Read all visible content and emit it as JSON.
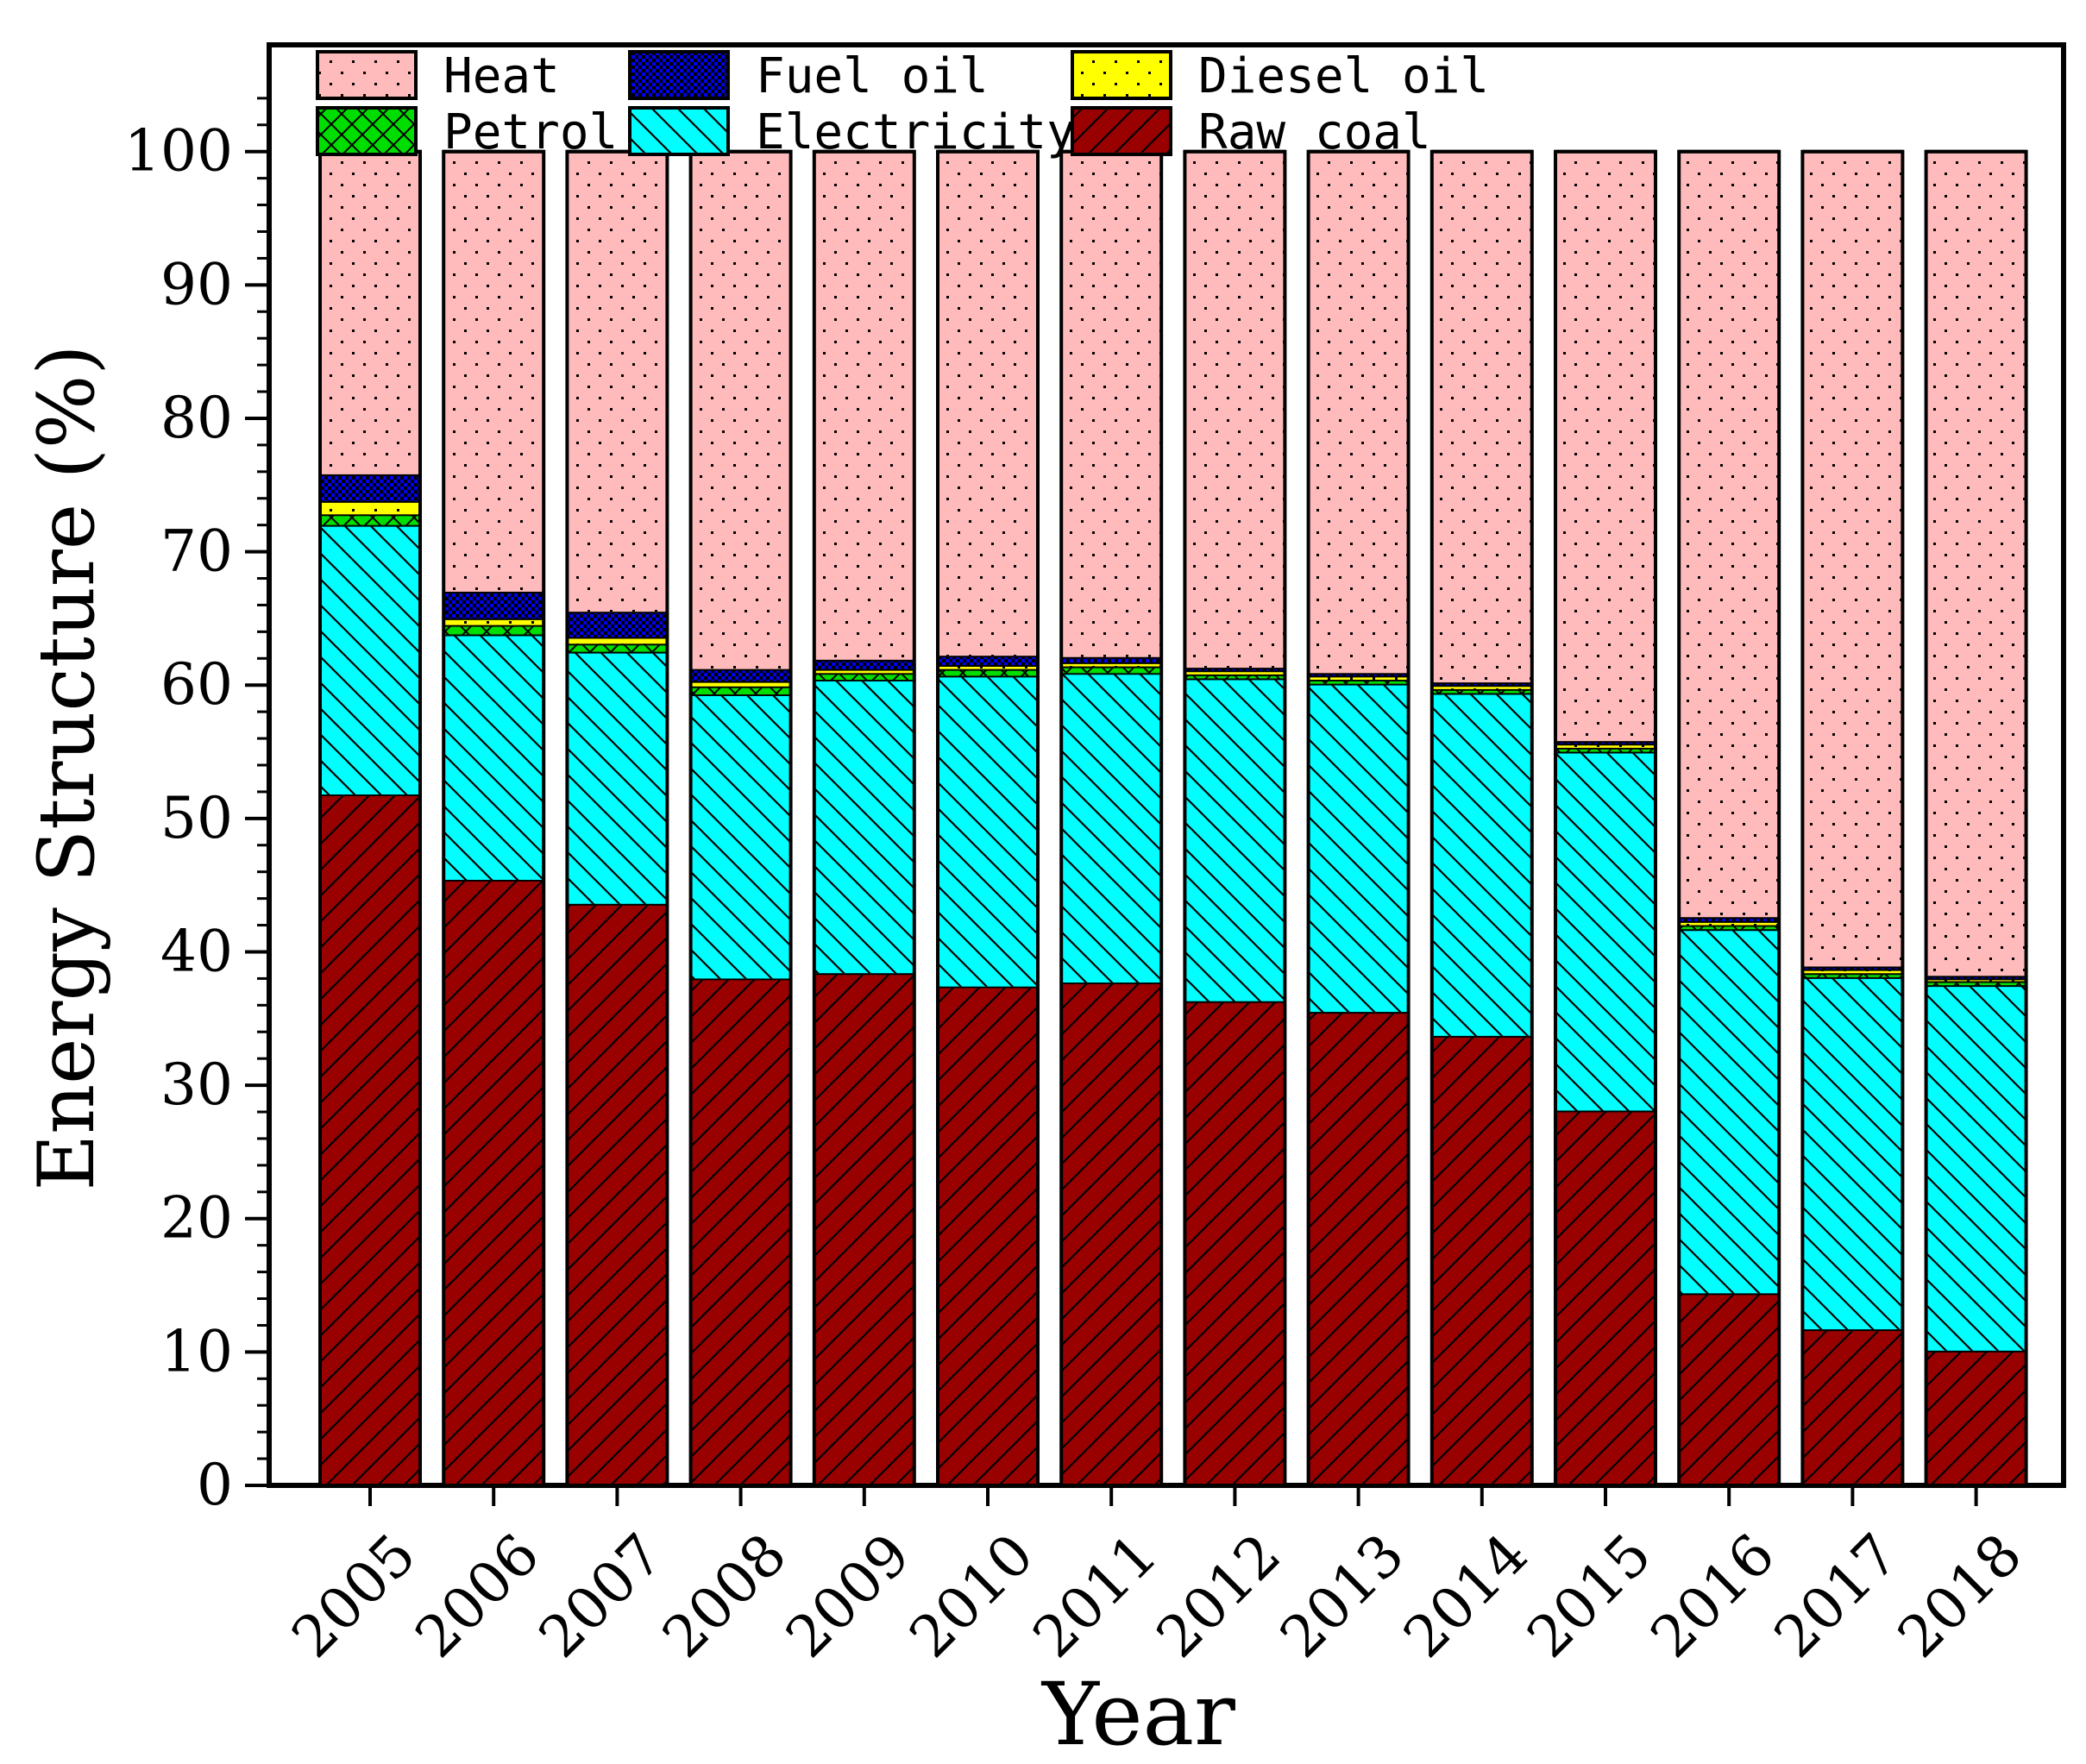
{
  "chart_data": {
    "type": "bar",
    "stacked": true,
    "title": "",
    "xlabel": "Year",
    "ylabel": "Energy Structure (%)",
    "ylim": [
      0,
      108
    ],
    "yticks": [
      0,
      10,
      20,
      30,
      40,
      50,
      60,
      70,
      80,
      90,
      100
    ],
    "grid": false,
    "legend_position": "top",
    "categories": [
      "2005",
      "2006",
      "2007",
      "2008",
      "2009",
      "2010",
      "2011",
      "2012",
      "2013",
      "2014",
      "2015",
      "2016",
      "2017",
      "2018"
    ],
    "series": [
      {
        "name": "Raw coal",
        "color": "#990000",
        "pattern": "diag-up",
        "values": [
          51.8,
          45.4,
          43.6,
          38.0,
          38.4,
          37.4,
          37.7,
          36.3,
          35.5,
          33.7,
          28.1,
          14.4,
          11.7,
          10.1
        ]
      },
      {
        "name": "Electricity",
        "color": "#00ffff",
        "pattern": "diag-down",
        "values": [
          20.2,
          18.4,
          18.9,
          21.3,
          22.0,
          23.3,
          23.2,
          24.2,
          24.6,
          25.7,
          26.9,
          27.3,
          26.4,
          27.4
        ]
      },
      {
        "name": "Petrol",
        "color": "#00dd00",
        "pattern": "crosshatch",
        "values": [
          0.8,
          0.7,
          0.6,
          0.6,
          0.5,
          0.5,
          0.5,
          0.3,
          0.3,
          0.3,
          0.3,
          0.3,
          0.3,
          0.3
        ]
      },
      {
        "name": "Diesel oil",
        "color": "#ffff00",
        "pattern": "dots",
        "values": [
          1.0,
          0.5,
          0.5,
          0.4,
          0.3,
          0.3,
          0.3,
          0.3,
          0.3,
          0.3,
          0.3,
          0.3,
          0.3,
          0.2
        ]
      },
      {
        "name": "Fuel oil",
        "color": "#0000ee",
        "pattern": "checker",
        "values": [
          2.0,
          2.0,
          1.9,
          0.9,
          0.7,
          0.7,
          0.4,
          0.2,
          0.2,
          0.2,
          0.2,
          0.3,
          0.2,
          0.2
        ]
      },
      {
        "name": "Heat",
        "color": "#ffbbbb",
        "pattern": "dots",
        "values": [
          24.2,
          33.0,
          34.5,
          38.8,
          38.1,
          37.8,
          37.9,
          38.7,
          39.1,
          39.8,
          44.2,
          57.4,
          61.1,
          61.8
        ]
      }
    ],
    "legend_order": [
      "Heat",
      "Fuel oil",
      "Diesel oil",
      "Petrol",
      "Electricity",
      "Raw coal"
    ]
  }
}
